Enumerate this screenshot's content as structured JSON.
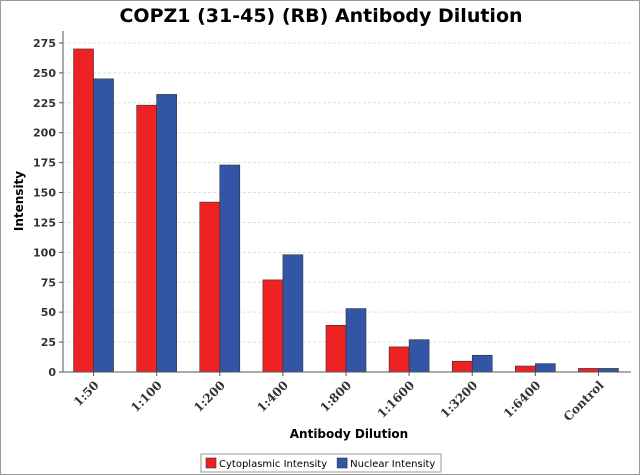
{
  "chart_data": {
    "type": "bar",
    "title": "COPZ1 (31-45) (RB) Antibody Dilution",
    "xlabel": "Antibody Dilution",
    "ylabel": "Intensity",
    "ylim": [
      0,
      285
    ],
    "yticks": [
      0,
      25,
      50,
      75,
      100,
      125,
      150,
      175,
      200,
      225,
      250,
      275
    ],
    "grid": true,
    "legend_position": "bottom",
    "categories": [
      "1:50",
      "1:100",
      "1:200",
      "1:400",
      "1:800",
      "1:1600",
      "1:3200",
      "1:6400",
      "Control"
    ],
    "series": [
      {
        "name": "Cytoplasmic Intensity",
        "color": "#ee2222",
        "values": [
          270,
          223,
          142,
          77,
          39,
          21,
          9,
          5,
          3
        ]
      },
      {
        "name": "Nuclear Intensity",
        "color": "#3355a5",
        "values": [
          245,
          232,
          173,
          98,
          53,
          27,
          14,
          7,
          3
        ]
      }
    ]
  }
}
